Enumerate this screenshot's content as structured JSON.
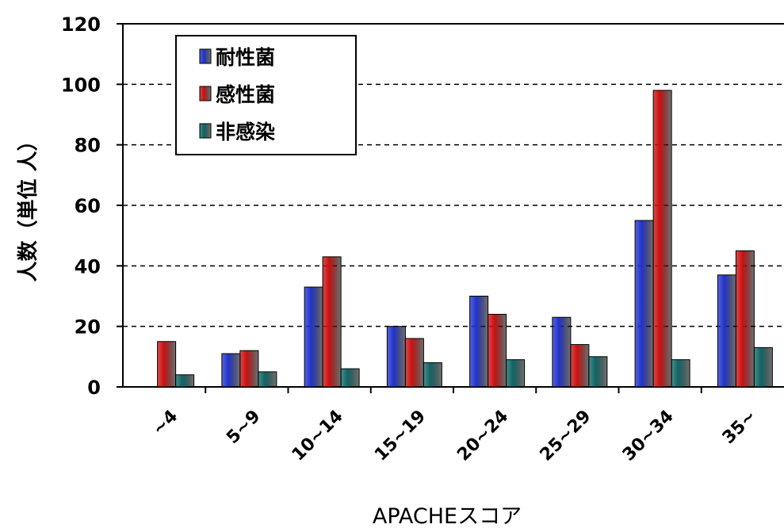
{
  "chart_data": {
    "type": "bar",
    "categories": [
      "~4",
      "5~9",
      "10~14",
      "15~19",
      "20~24",
      "25~29",
      "30~34",
      "35~"
    ],
    "series": [
      {
        "name": "耐性菌",
        "color": "#2233cc",
        "values": [
          0,
          11,
          33,
          20,
          30,
          23,
          55,
          37
        ]
      },
      {
        "name": "感性菌",
        "color": "#cc1111",
        "values": [
          15,
          12,
          43,
          16,
          24,
          14,
          98,
          45
        ]
      },
      {
        "name": "非感染",
        "color": "#116666",
        "values": [
          4,
          5,
          6,
          8,
          9,
          10,
          9,
          13
        ]
      }
    ],
    "xlabel": "APACHEスコア",
    "ylabel": "人数（単位 人）",
    "ylim": [
      0,
      120
    ],
    "yticks": [
      0,
      20,
      40,
      60,
      80,
      100,
      120
    ],
    "grid": "horizontal dashed",
    "legend_position": "top-left"
  }
}
